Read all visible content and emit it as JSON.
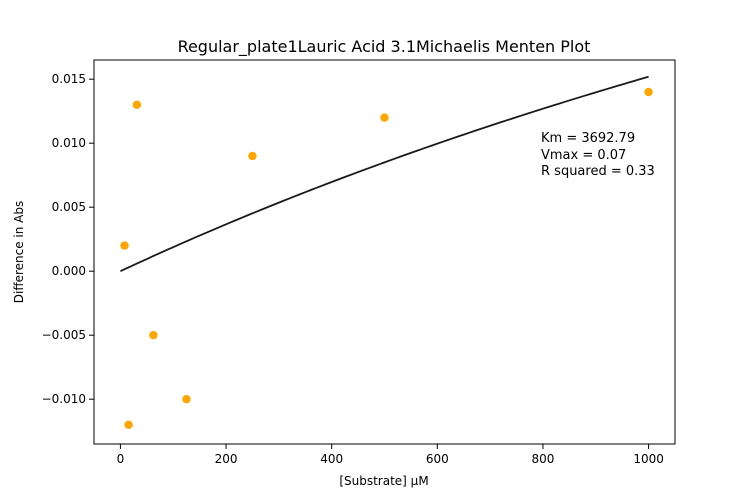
{
  "chart_data": {
    "type": "scatter",
    "title": "Regular_plate1Lauric Acid 3.1Michaelis Menten Plot",
    "xlabel": "[Substrate] μM",
    "ylabel": "Difference in Abs",
    "xlim": [
      -50,
      1050
    ],
    "ylim": [
      -0.0135,
      0.0165
    ],
    "x_ticks": [
      0,
      200,
      400,
      600,
      800,
      1000
    ],
    "x_tick_labels": [
      "0",
      "200",
      "400",
      "600",
      "800",
      "1000"
    ],
    "y_ticks": [
      -0.01,
      -0.005,
      0.0,
      0.005,
      0.01,
      0.015
    ],
    "y_tick_labels": [
      "−0.010",
      "−0.005",
      "0.000",
      "0.005",
      "0.010",
      "0.015"
    ],
    "grid": false,
    "points": {
      "color": "#ffa500",
      "x": [
        7.8,
        15.6,
        31.25,
        62.5,
        125,
        250,
        500,
        1000
      ],
      "y": [
        0.002,
        -0.012,
        0.013,
        -0.005,
        -0.01,
        0.009,
        0.012,
        0.014
      ]
    },
    "fit": {
      "color": "#1a1a1a",
      "Km": 3692.79,
      "Vmax": 0.0713,
      "x_range": [
        0,
        1000
      ]
    },
    "annotations": [
      "Km = 3692.79",
      "Vmax = 0.07",
      "R squared = 0.33"
    ]
  }
}
